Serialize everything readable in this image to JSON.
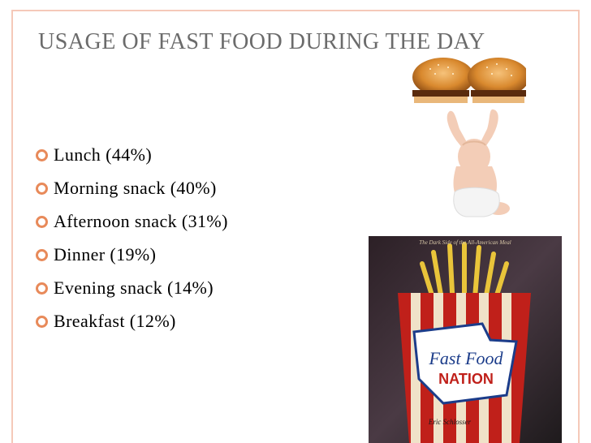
{
  "slide": {
    "title": "USAGE OF FAST FOOD DURING THE DAY",
    "bullets": [
      {
        "text": "Lunch (44%)"
      },
      {
        "text": "Morning snack (40%)"
      },
      {
        "text": "Afternoon snack (31%)"
      },
      {
        "text": "Dinner (19%)"
      },
      {
        "text": "Evening snack (14%)"
      },
      {
        "text": "Breakfast (12%)"
      }
    ]
  },
  "book_cover": {
    "top_tagline": "The Dark Side of the All-American Meal",
    "title_line1": "Fast Food",
    "title_line2": "NATION",
    "author": "Eric Schlosser"
  },
  "colors": {
    "title": "#6b6b6b",
    "bullet_icon": "#e88a5a",
    "frame": "#f5c9b9",
    "book_background": "#c0201a"
  }
}
